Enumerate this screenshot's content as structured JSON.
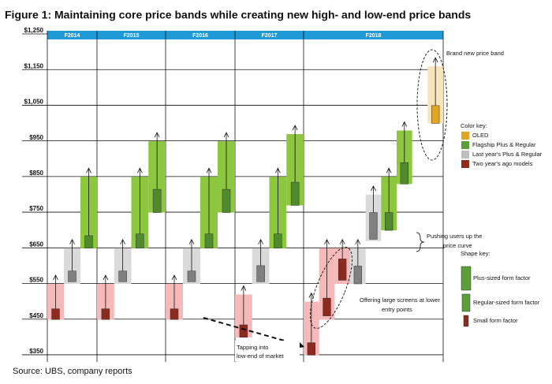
{
  "chart_data": {
    "type": "price-bands",
    "title": "Figure 1: Maintaining core price bands while creating new high- and low-end price bands",
    "source": "Source:  UBS, company reports",
    "ylim": [
      330,
      1250
    ],
    "yticks": [
      {
        "value": 1250,
        "label": "$1,250"
      },
      {
        "value": 1150,
        "label": "$1,150"
      },
      {
        "value": 1050,
        "label": "$1,050"
      },
      {
        "value": 950,
        "label": "$950"
      },
      {
        "value": 850,
        "label": "$850"
      },
      {
        "value": 750,
        "label": "$750"
      },
      {
        "value": 650,
        "label": "$650"
      },
      {
        "value": 550,
        "label": "$550"
      },
      {
        "value": 450,
        "label": "$450"
      },
      {
        "value": 350,
        "label": "$350"
      }
    ],
    "header_color": "#1f9ad6",
    "years": [
      {
        "label": "F2014",
        "bands": [
          {
            "low": 449,
            "high": 549,
            "marker_low": 449,
            "marker_high": 479,
            "band_color": "#f6b9b9",
            "marker_color": "#8b2a1e"
          },
          {
            "low": 549,
            "high": 649,
            "marker_low": 555,
            "marker_high": 585,
            "band_color": "#dadada",
            "marker_color": "#808080"
          },
          {
            "low": 649,
            "high": 849,
            "marker_low": 649,
            "marker_high": 684,
            "band_color": "#8dc63f",
            "marker_color": "#4f8a2c"
          }
        ]
      },
      {
        "label": "F2015",
        "bands": [
          {
            "low": 449,
            "high": 549,
            "marker_low": 449,
            "marker_high": 479,
            "band_color": "#f6b9b9",
            "marker_color": "#8b2a1e"
          },
          {
            "low": 549,
            "high": 649,
            "marker_low": 555,
            "marker_high": 585,
            "band_color": "#dadada",
            "marker_color": "#808080"
          },
          {
            "low": 649,
            "high": 849,
            "marker_low": 649,
            "marker_high": 689,
            "band_color": "#8dc63f",
            "marker_color": "#4f8a2c"
          },
          {
            "low": 749,
            "high": 949,
            "marker_low": 749,
            "marker_high": 814,
            "band_color": "#8dc63f",
            "marker_color": "#4f8a2c"
          }
        ]
      },
      {
        "label": "F2016",
        "bands": [
          {
            "low": 449,
            "high": 549,
            "marker_low": 449,
            "marker_high": 479,
            "band_color": "#f6b9b9",
            "marker_color": "#8b2a1e"
          },
          {
            "low": 549,
            "high": 649,
            "marker_low": 555,
            "marker_high": 585,
            "band_color": "#dadada",
            "marker_color": "#808080"
          },
          {
            "low": 649,
            "high": 849,
            "marker_low": 649,
            "marker_high": 689,
            "band_color": "#8dc63f",
            "marker_color": "#4f8a2c"
          },
          {
            "low": 749,
            "high": 949,
            "marker_low": 749,
            "marker_high": 814,
            "band_color": "#8dc63f",
            "marker_color": "#4f8a2c"
          }
        ]
      },
      {
        "label": "F2017",
        "bands": [
          {
            "low": 399,
            "high": 519,
            "marker_low": 399,
            "marker_high": 434,
            "band_color": "#f6b9b9",
            "marker_color": "#8b2a1e"
          },
          {
            "low": 549,
            "high": 649,
            "marker_low": 555,
            "marker_high": 600,
            "band_color": "#dadada",
            "marker_color": "#808080"
          },
          {
            "low": 649,
            "high": 849,
            "marker_low": 649,
            "marker_high": 689,
            "band_color": "#8dc63f",
            "marker_color": "#4f8a2c"
          },
          {
            "low": 769,
            "high": 969,
            "marker_low": 769,
            "marker_high": 834,
            "band_color": "#8dc63f",
            "marker_color": "#4f8a2c"
          }
        ]
      },
      {
        "label": "F2018",
        "bands": [
          {
            "low": 349,
            "high": 499,
            "marker_low": 349,
            "marker_high": 384,
            "band_color": "#f6b9b9",
            "marker_color": "#8b2a1e"
          },
          {
            "low": 449,
            "high": 649,
            "marker_low": 459,
            "marker_high": 509,
            "band_color": "#f6b9b9",
            "marker_color": "#8b2a1e"
          },
          {
            "low": 549,
            "high": 649,
            "marker_low": 559,
            "marker_high": 619,
            "band_color": "#f6b9b9",
            "marker_color": "#8b2a1e"
          },
          {
            "low": 549,
            "high": 649,
            "marker_low": 549,
            "marker_high": 599,
            "band_color": "#dadada",
            "marker_color": "#808080"
          },
          {
            "low": 669,
            "high": 799,
            "marker_low": 674,
            "marker_high": 749,
            "band_color": "#dadada",
            "marker_color": "#808080"
          },
          {
            "low": 699,
            "high": 849,
            "marker_low": 699,
            "marker_high": 749,
            "band_color": "#8dc63f",
            "marker_color": "#4f8a2c"
          },
          {
            "low": 829,
            "high": 979,
            "marker_low": 829,
            "marker_high": 889,
            "band_color": "#8dc63f",
            "marker_color": "#4f8a2c"
          },
          {
            "low": 999,
            "high": 1159,
            "marker_low": 999,
            "marker_high": 1049,
            "band_color": "#f7e4bb",
            "marker_color": "#e1a623"
          }
        ]
      }
    ],
    "color_key": {
      "title": "Color key:",
      "items": [
        {
          "name": "OLED",
          "color": "#e1a623"
        },
        {
          "name": "Flagship Plus & Regular",
          "color": "#5e9e3a"
        },
        {
          "name": "Last year's Plus & Regular",
          "color": "#bfbfbf"
        },
        {
          "name": "Two year's ago models",
          "color": "#8b2a1e"
        }
      ]
    },
    "shape_key": {
      "title": "Shape key:",
      "items": [
        "Plus-sized form factor",
        "Regular-sized form factor",
        "Small form factor"
      ]
    },
    "annotations": {
      "new_band": "Brand new price band",
      "pushing": [
        "Pushing users up the",
        "price curve"
      ],
      "large_screens": [
        "Offering large screens at lower",
        "entry points"
      ],
      "low_end": [
        "Tapping into",
        "low-end of market"
      ]
    }
  }
}
